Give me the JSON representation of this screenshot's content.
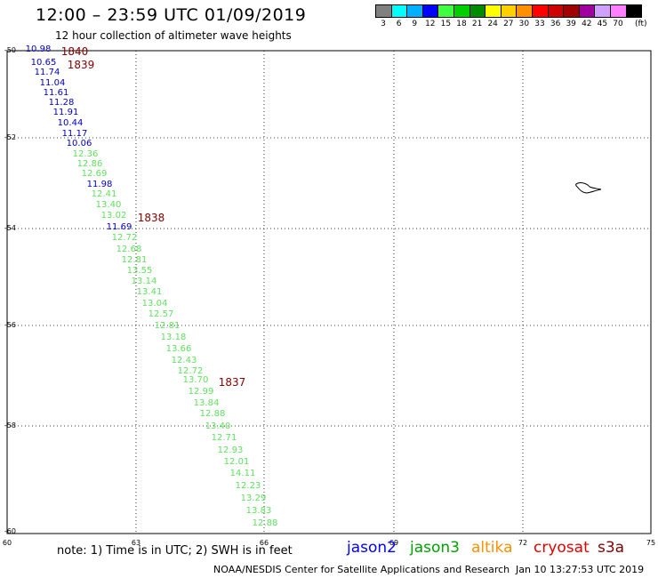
{
  "header": {
    "title": "12:00 – 23:59 UTC 01/09/2019",
    "subtitle": "12 hour collection of altimeter wave heights"
  },
  "legend": {
    "unit": "(ft)",
    "bins": [
      {
        "label": "3",
        "color": "#808080"
      },
      {
        "label": "6",
        "color": "#00ffff"
      },
      {
        "label": "9",
        "color": "#00b0ff"
      },
      {
        "label": "12",
        "color": "#0000ff"
      },
      {
        "label": "15",
        "color": "#40ff40"
      },
      {
        "label": "18",
        "color": "#00d000"
      },
      {
        "label": "21",
        "color": "#008c00"
      },
      {
        "label": "24",
        "color": "#ffff00"
      },
      {
        "label": "27",
        "color": "#ffd000"
      },
      {
        "label": "30",
        "color": "#ff9000"
      },
      {
        "label": "33",
        "color": "#ff0000"
      },
      {
        "label": "36",
        "color": "#d00000"
      },
      {
        "label": "39",
        "color": "#a00000"
      },
      {
        "label": "42",
        "color": "#a000a0"
      },
      {
        "label": "45",
        "color": "#d0a0ff"
      },
      {
        "label": "70",
        "color": "#ff80ff"
      },
      {
        "label": "",
        "color": "#000000"
      }
    ]
  },
  "axes": {
    "lon_ticks": [
      "60",
      "63",
      "66",
      "69",
      "72",
      "75"
    ],
    "lat_ticks": [
      "-50",
      "-52",
      "-54",
      "-56",
      "-58",
      "-60"
    ]
  },
  "time_labels": [
    "1840",
    "1839",
    "1838",
    "1837"
  ],
  "wave_heights": [
    {
      "v": "10.98",
      "c": "#0000c0"
    },
    {
      "v": "10.65",
      "c": "#0000c0"
    },
    {
      "v": "11.74",
      "c": "#0000c0"
    },
    {
      "v": "11.04",
      "c": "#0000c0"
    },
    {
      "v": "11.61",
      "c": "#0000c0"
    },
    {
      "v": "11.28",
      "c": "#0000c0"
    },
    {
      "v": "11.91",
      "c": "#0000c0"
    },
    {
      "v": "10.44",
      "c": "#0000c0"
    },
    {
      "v": "11.17",
      "c": "#0000c0"
    },
    {
      "v": "10.06",
      "c": "#0000c0"
    },
    {
      "v": "12.36",
      "c": "#60e060"
    },
    {
      "v": "12.86",
      "c": "#60e060"
    },
    {
      "v": "12.69",
      "c": "#60e060"
    },
    {
      "v": "11.98",
      "c": "#0000c0"
    },
    {
      "v": "12.41",
      "c": "#60e060"
    },
    {
      "v": "13.40",
      "c": "#60e060"
    },
    {
      "v": "13.02",
      "c": "#60e060"
    },
    {
      "v": "11.69",
      "c": "#0000c0"
    },
    {
      "v": "12.72",
      "c": "#60e060"
    },
    {
      "v": "12.68",
      "c": "#60e060"
    },
    {
      "v": "12.81",
      "c": "#60e060"
    },
    {
      "v": "13.55",
      "c": "#60e060"
    },
    {
      "v": "13.14",
      "c": "#60e060"
    },
    {
      "v": "13.41",
      "c": "#60e060"
    },
    {
      "v": "13.04",
      "c": "#60e060"
    },
    {
      "v": "12.57",
      "c": "#60e060"
    },
    {
      "v": "12.81",
      "c": "#60e060"
    },
    {
      "v": "13.18",
      "c": "#60e060"
    },
    {
      "v": "13.66",
      "c": "#60e060"
    },
    {
      "v": "12.43",
      "c": "#60e060"
    },
    {
      "v": "12.72",
      "c": "#60e060"
    },
    {
      "v": "13.70",
      "c": "#60e060"
    },
    {
      "v": "12.99",
      "c": "#60e060"
    },
    {
      "v": "13.84",
      "c": "#60e060"
    },
    {
      "v": "12.88",
      "c": "#60e060"
    },
    {
      "v": "13.40",
      "c": "#60e060"
    },
    {
      "v": "12.71",
      "c": "#60e060"
    },
    {
      "v": "12.93",
      "c": "#60e060"
    },
    {
      "v": "12.01",
      "c": "#60e060"
    },
    {
      "v": "14.11",
      "c": "#60e060"
    },
    {
      "v": "12.23",
      "c": "#60e060"
    },
    {
      "v": "13.29",
      "c": "#60e060"
    },
    {
      "v": "13.83",
      "c": "#60e060"
    },
    {
      "v": "12.88",
      "c": "#60e060"
    }
  ],
  "footer": {
    "note": "note:  1) Time is in UTC;  2) SWH is in feet",
    "satellites": [
      {
        "name": "jason2",
        "color": "#0000ff"
      },
      {
        "name": "jason3",
        "color": "#00a000"
      },
      {
        "name": "altika",
        "color": "#ff9000"
      },
      {
        "name": "cryosat",
        "color": "#e00000"
      },
      {
        "name": "s3a",
        "color": "#800000"
      }
    ],
    "credit": "NOAA/NESDIS Center for Satellite Applications and Research",
    "timestamp": "Jan 10 13:27:53 UTC 2019"
  }
}
